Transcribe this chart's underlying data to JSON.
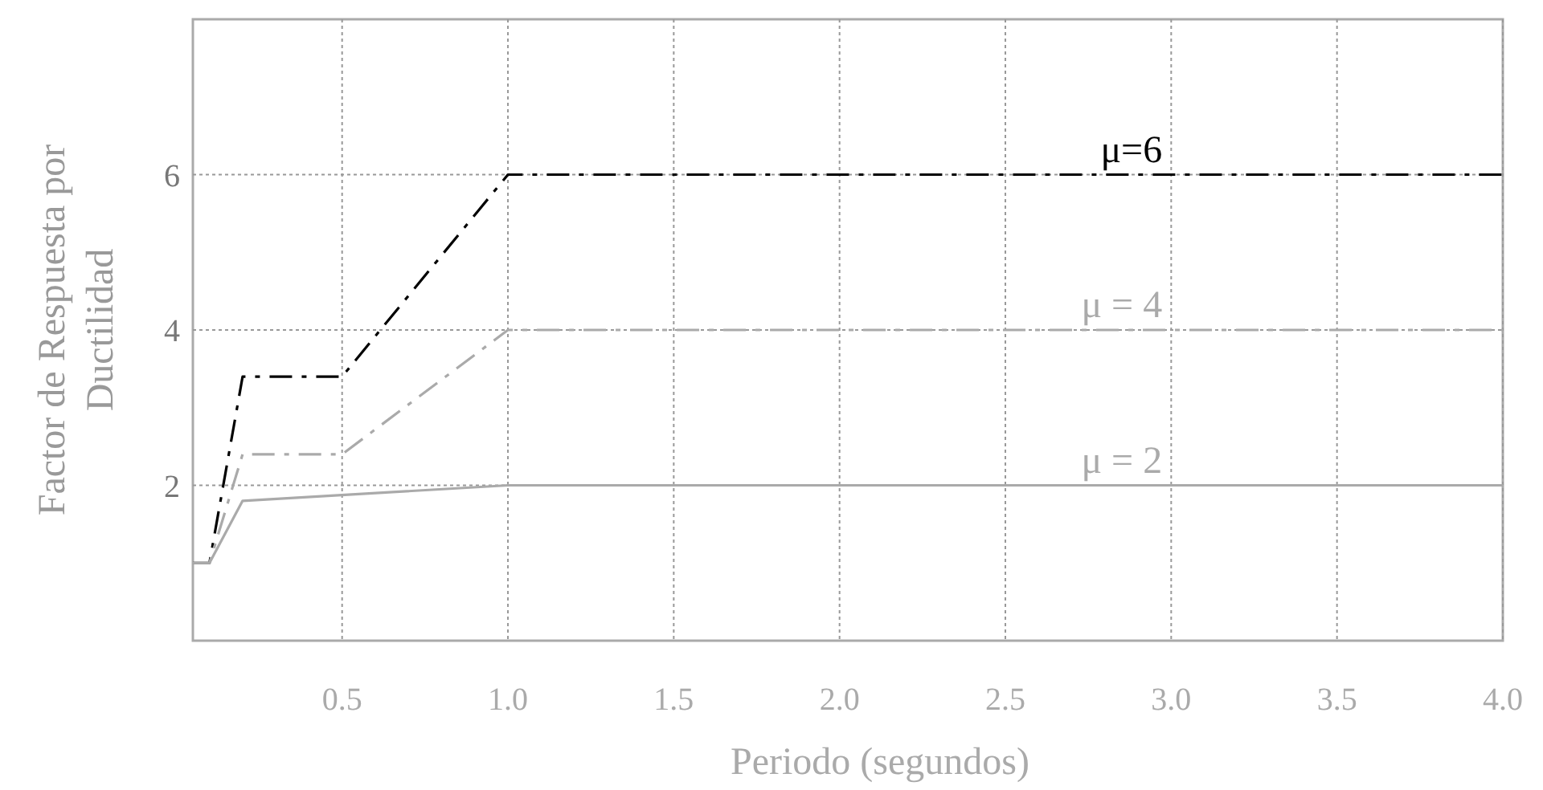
{
  "chart_data": {
    "type": "line",
    "xlabel": "Periodo (segundos)",
    "ylabel": "Factor de Respuesta por\nDuctilidad",
    "xlim": [
      0.05,
      4.0
    ],
    "ylim": [
      0,
      8
    ],
    "xticks": [
      0.5,
      {
        "value": 1,
        "label": "1.0"
      },
      1.5,
      {
        "value": 2,
        "label": "2.0"
      },
      2.5,
      {
        "value": 3,
        "label": "3.0"
      },
      3.5,
      {
        "value": 4,
        "label": "4.0"
      }
    ],
    "yticks": [
      2,
      4,
      6
    ],
    "grid": true,
    "series": [
      {
        "name": "μ=6",
        "color": "#000000",
        "line_style": "dashed",
        "x": [
          0.05,
          0.1,
          0.2,
          0.5,
          1.0,
          4.0
        ],
        "values": [
          1,
          1,
          3.4,
          3.4,
          6,
          6
        ]
      },
      {
        "name": "μ = 4",
        "color": "#aaaaaa",
        "line_style": "dashed",
        "x": [
          0.05,
          0.1,
          0.2,
          0.5,
          1.0,
          4.0
        ],
        "values": [
          1,
          1,
          2.4,
          2.4,
          4,
          4
        ]
      },
      {
        "name": "μ = 2",
        "color": "#aaaaaa",
        "line_style": "solid",
        "x": [
          0.05,
          0.1,
          0.2,
          1.0,
          4.0
        ],
        "values": [
          1,
          1,
          1.8,
          2,
          2
        ]
      }
    ]
  }
}
